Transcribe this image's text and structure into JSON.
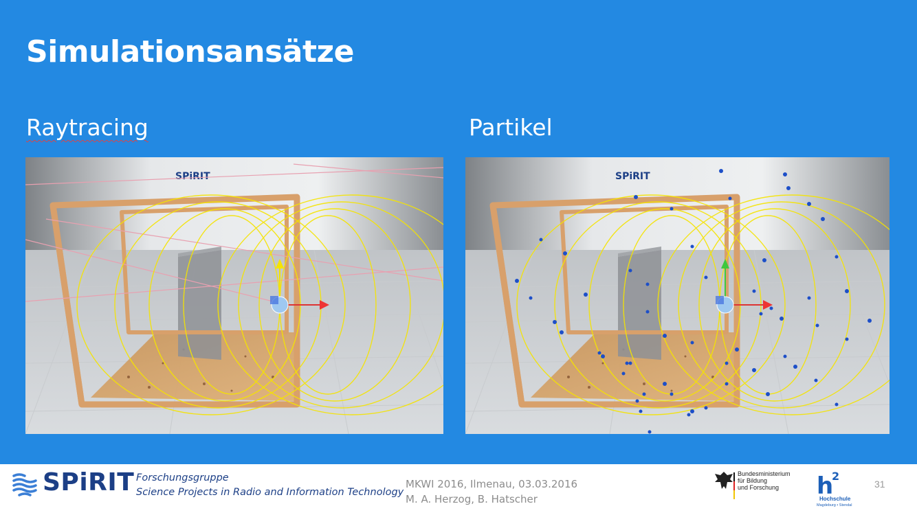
{
  "slide": {
    "title": "Simulationsansätze",
    "left_heading": "Raytracing",
    "right_heading": "Partikel",
    "left_image_label": "SPiRIT",
    "right_image_label": "SPiRIT"
  },
  "footer": {
    "logo_name": "SPiRIT",
    "logo_line1": "Forschungsgruppe",
    "logo_line2": "Science Projects in Radio and Information Technology",
    "conference_line1": "MKWI 2016, Ilmenau, 03.03.2016",
    "conference_line2": "M. A. Herzog, B. Hatscher",
    "ministry_line1": "Bundesministerium",
    "ministry_line2": "für Bildung",
    "ministry_line3": "und Forschung",
    "hs_name": "Hochschule",
    "hs_sub": "Magdeburg • Stendal",
    "page_number": "31"
  },
  "colors": {
    "background": "#2389e2",
    "field_lines": "#f5e400",
    "frame": "#d8a06b",
    "particles": "#1d4fc8",
    "rays": "#e8a0b0"
  }
}
